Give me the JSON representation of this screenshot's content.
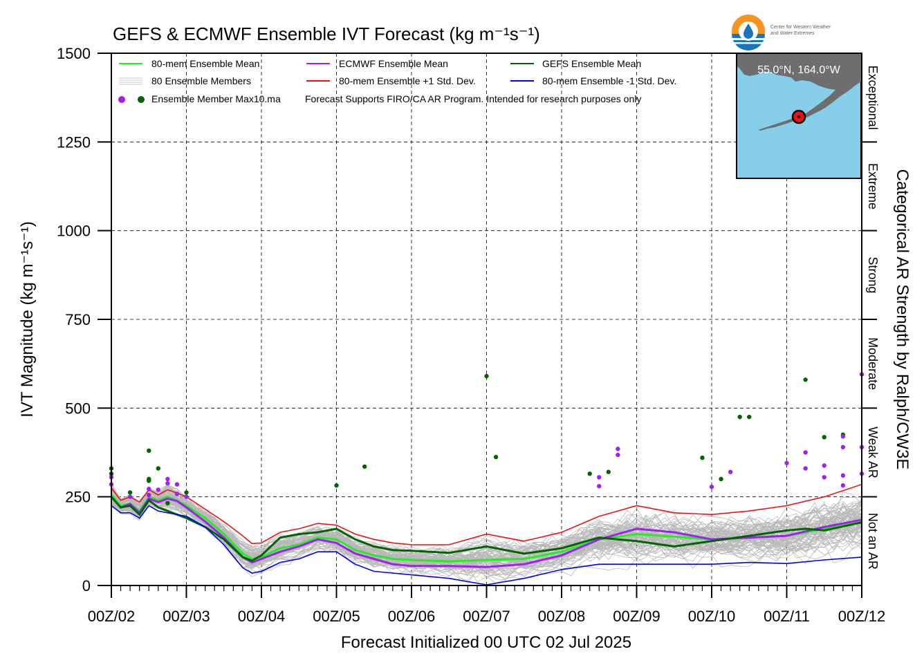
{
  "title": "GEFS & ECMWF Ensemble IVT Forecast (kg m⁻¹s⁻¹)",
  "logo": {
    "line1": "Center for Western Weather",
    "line2": "and Water Extremes",
    "icon": "cw3e-drop-logo-icon"
  },
  "legend": {
    "mean80": "80-mem Ensemble Mean",
    "members": "80 Ensemble Members",
    "max10": "Ensemble Member Max10.ma",
    "ecmwf_mean": "ECMWF Ensemble Mean",
    "plus_sd": "80-mem Ensemble +1 Std. Dev.",
    "gefs_mean": "GEFS Ensemble Mean",
    "minus_sd": "80-mem Ensemble -1 Std. Dev.",
    "disclaimer": "Forecast Supports FIRO/CA AR Program. Intended for research purposes only"
  },
  "inset_map": {
    "coord_text": "55.0°N, 164.0°W",
    "land_color": "#6e6e6e",
    "ocean_color": "#87ceeb"
  },
  "chart_data": {
    "type": "line",
    "title": "GEFS & ECMWF Ensemble IVT Forecast (kg m⁻¹s⁻¹)",
    "xlabel": "Forecast Initialized 00 UTC 02 Jul 2025",
    "ylabel": "IVT Magnitude (kg m⁻¹s⁻¹)",
    "right_label": "Categorical AR Strength by Ralph/CW3E",
    "x_unit": "forecast day",
    "xlim": [
      0,
      10
    ],
    "ylim": [
      0,
      1500
    ],
    "x_ticks": [
      {
        "x": 0,
        "label": "00Z/02"
      },
      {
        "x": 1,
        "label": "00Z/03"
      },
      {
        "x": 2,
        "label": "00Z/04"
      },
      {
        "x": 3,
        "label": "00Z/05"
      },
      {
        "x": 4,
        "label": "00Z/06"
      },
      {
        "x": 5,
        "label": "00Z/07"
      },
      {
        "x": 6,
        "label": "00Z/08"
      },
      {
        "x": 7,
        "label": "00Z/09"
      },
      {
        "x": 8,
        "label": "00Z/10"
      },
      {
        "x": 9,
        "label": "00Z/11"
      },
      {
        "x": 10,
        "label": "00Z/12"
      }
    ],
    "y_ticks": [
      0,
      250,
      500,
      750,
      1000,
      1250,
      1500
    ],
    "grid": true,
    "legend_position": "top-left",
    "categories_right": [
      {
        "label": "Not an AR",
        "from": 0,
        "to": 250
      },
      {
        "label": "Weak AR",
        "from": 250,
        "to": 500
      },
      {
        "label": "Moderate",
        "from": 500,
        "to": 750
      },
      {
        "label": "Strong",
        "from": 750,
        "to": 1000
      },
      {
        "label": "Extreme",
        "from": 1000,
        "to": 1250
      },
      {
        "label": "Exceptional",
        "from": 1250,
        "to": 1500
      }
    ],
    "series": [
      {
        "name": "80-mem Ensemble Mean",
        "color": "#22ee22",
        "points": [
          [
            0,
            255
          ],
          [
            0.125,
            225
          ],
          [
            0.25,
            230
          ],
          [
            0.375,
            210
          ],
          [
            0.5,
            250
          ],
          [
            0.625,
            240
          ],
          [
            0.75,
            250
          ],
          [
            0.875,
            240
          ],
          [
            1,
            225
          ],
          [
            1.25,
            190
          ],
          [
            1.5,
            145
          ],
          [
            1.75,
            90
          ],
          [
            1.875,
            75
          ],
          [
            2,
            80
          ],
          [
            2.25,
            105
          ],
          [
            2.5,
            115
          ],
          [
            2.75,
            135
          ],
          [
            3,
            130
          ],
          [
            3.25,
            100
          ],
          [
            3.5,
            85
          ],
          [
            3.75,
            75
          ],
          [
            4,
            72
          ],
          [
            4.5,
            68
          ],
          [
            5,
            72
          ],
          [
            5.5,
            75
          ],
          [
            6,
            95
          ],
          [
            6.5,
            130
          ],
          [
            7,
            145
          ],
          [
            7.5,
            138
          ],
          [
            8,
            130
          ],
          [
            8.5,
            135
          ],
          [
            9,
            140
          ],
          [
            9.5,
            160
          ],
          [
            10,
            185
          ]
        ]
      },
      {
        "name": "ECMWF Ensemble Mean",
        "color": "#a020f0",
        "points": [
          [
            0,
            250
          ],
          [
            0.125,
            220
          ],
          [
            0.25,
            230
          ],
          [
            0.375,
            205
          ],
          [
            0.5,
            245
          ],
          [
            0.625,
            235
          ],
          [
            0.75,
            245
          ],
          [
            0.875,
            238
          ],
          [
            1,
            220
          ],
          [
            1.25,
            180
          ],
          [
            1.5,
            135
          ],
          [
            1.75,
            80
          ],
          [
            1.875,
            65
          ],
          [
            2,
            75
          ],
          [
            2.25,
            95
          ],
          [
            2.5,
            110
          ],
          [
            2.75,
            130
          ],
          [
            3,
            120
          ],
          [
            3.25,
            90
          ],
          [
            3.5,
            75
          ],
          [
            3.75,
            60
          ],
          [
            4,
            55
          ],
          [
            4.5,
            55
          ],
          [
            5,
            52
          ],
          [
            5.5,
            60
          ],
          [
            6,
            85
          ],
          [
            6.5,
            130
          ],
          [
            7,
            160
          ],
          [
            7.5,
            150
          ],
          [
            8,
            130
          ],
          [
            8.5,
            135
          ],
          [
            9,
            140
          ],
          [
            9.5,
            165
          ],
          [
            10,
            185
          ]
        ]
      },
      {
        "name": "GEFS Ensemble Mean",
        "color": "#006400",
        "points": [
          [
            0,
            250
          ],
          [
            0.125,
            220
          ],
          [
            0.25,
            225
          ],
          [
            0.375,
            200
          ],
          [
            0.5,
            240
          ],
          [
            0.625,
            220
          ],
          [
            0.75,
            210
          ],
          [
            0.875,
            200
          ],
          [
            1,
            190
          ],
          [
            1.25,
            165
          ],
          [
            1.5,
            130
          ],
          [
            1.75,
            80
          ],
          [
            1.875,
            70
          ],
          [
            2,
            85
          ],
          [
            2.25,
            135
          ],
          [
            2.5,
            145
          ],
          [
            2.75,
            150
          ],
          [
            3,
            160
          ],
          [
            3.25,
            130
          ],
          [
            3.5,
            110
          ],
          [
            3.75,
            100
          ],
          [
            4,
            98
          ],
          [
            4.5,
            92
          ],
          [
            5,
            110
          ],
          [
            5.5,
            90
          ],
          [
            6,
            105
          ],
          [
            6.5,
            135
          ],
          [
            7,
            125
          ],
          [
            7.5,
            110
          ],
          [
            8,
            125
          ],
          [
            8.5,
            140
          ],
          [
            9,
            155
          ],
          [
            9.25,
            160
          ],
          [
            9.5,
            155
          ],
          [
            10,
            178
          ]
        ]
      },
      {
        "name": "80-mem Ensemble +1 Std. Dev.",
        "color": "#ee1111",
        "points": [
          [
            0,
            275
          ],
          [
            0.125,
            240
          ],
          [
            0.25,
            250
          ],
          [
            0.375,
            235
          ],
          [
            0.5,
            270
          ],
          [
            0.625,
            255
          ],
          [
            0.75,
            270
          ],
          [
            0.875,
            260
          ],
          [
            1,
            250
          ],
          [
            1.25,
            215
          ],
          [
            1.5,
            180
          ],
          [
            1.75,
            140
          ],
          [
            1.875,
            118
          ],
          [
            2,
            120
          ],
          [
            2.25,
            150
          ],
          [
            2.5,
            160
          ],
          [
            2.75,
            175
          ],
          [
            3,
            170
          ],
          [
            3.25,
            145
          ],
          [
            3.5,
            130
          ],
          [
            3.75,
            120
          ],
          [
            4,
            115
          ],
          [
            4.5,
            115
          ],
          [
            5,
            145
          ],
          [
            5.5,
            125
          ],
          [
            6,
            150
          ],
          [
            6.5,
            195
          ],
          [
            7,
            225
          ],
          [
            7.5,
            205
          ],
          [
            8,
            200
          ],
          [
            8.5,
            210
          ],
          [
            9,
            225
          ],
          [
            9.5,
            250
          ],
          [
            10,
            285
          ]
        ]
      },
      {
        "name": "80-mem Ensemble -1 Std. Dev.",
        "color": "#0000ee",
        "points": [
          [
            0,
            225
          ],
          [
            0.125,
            205
          ],
          [
            0.25,
            205
          ],
          [
            0.375,
            190
          ],
          [
            0.5,
            225
          ],
          [
            0.625,
            210
          ],
          [
            0.75,
            205
          ],
          [
            0.875,
            200
          ],
          [
            1,
            195
          ],
          [
            1.25,
            165
          ],
          [
            1.5,
            115
          ],
          [
            1.75,
            50
          ],
          [
            1.875,
            35
          ],
          [
            2,
            40
          ],
          [
            2.25,
            65
          ],
          [
            2.5,
            75
          ],
          [
            2.75,
            95
          ],
          [
            3,
            95
          ],
          [
            3.25,
            60
          ],
          [
            3.5,
            40
          ],
          [
            3.75,
            35
          ],
          [
            4,
            30
          ],
          [
            4.5,
            20
          ],
          [
            5,
            2
          ],
          [
            5.5,
            20
          ],
          [
            6,
            45
          ],
          [
            6.5,
            60
          ],
          [
            7,
            60
          ],
          [
            7.5,
            60
          ],
          [
            8,
            60
          ],
          [
            8.5,
            65
          ],
          [
            9,
            62
          ],
          [
            9.5,
            72
          ],
          [
            10,
            80
          ]
        ]
      }
    ],
    "member_max_points": [
      {
        "model": "GEFS",
        "color": "#006400",
        "points": [
          [
            0,
            330
          ],
          [
            0,
            315
          ],
          [
            0.25,
            262
          ],
          [
            0.5,
            380
          ],
          [
            0.5,
            300
          ],
          [
            0.5,
            295
          ],
          [
            0.625,
            330
          ],
          [
            0.75,
            232
          ],
          [
            1,
            262
          ],
          [
            3,
            282
          ],
          [
            3.375,
            335
          ],
          [
            5,
            590
          ],
          [
            5.125,
            362
          ],
          [
            6.375,
            315
          ],
          [
            6.625,
            320
          ],
          [
            7.875,
            360
          ],
          [
            8.125,
            300
          ],
          [
            8.375,
            475
          ],
          [
            8.5,
            475
          ],
          [
            9.25,
            580
          ],
          [
            9.5,
            418
          ],
          [
            9.75,
            425
          ]
        ]
      },
      {
        "model": "ECMWF",
        "color": "#a020f0",
        "points": [
          [
            0,
            305
          ],
          [
            0,
            285
          ],
          [
            0.25,
            250
          ],
          [
            0.5,
            272
          ],
          [
            0.5,
            255
          ],
          [
            0.625,
            270
          ],
          [
            0.75,
            300
          ],
          [
            0.75,
            288
          ],
          [
            0.875,
            285
          ],
          [
            0.875,
            258
          ],
          [
            1,
            250
          ],
          [
            6.5,
            305
          ],
          [
            6.5,
            280
          ],
          [
            6.75,
            385
          ],
          [
            6.75,
            368
          ],
          [
            8,
            278
          ],
          [
            8.25,
            320
          ],
          [
            9,
            345
          ],
          [
            9.25,
            375
          ],
          [
            9.25,
            330
          ],
          [
            9.5,
            338
          ],
          [
            9.5,
            305
          ],
          [
            9.75,
            420
          ],
          [
            9.75,
            390
          ],
          [
            9.75,
            310
          ],
          [
            9.75,
            282
          ],
          [
            10,
            595
          ],
          [
            10,
            390
          ],
          [
            10,
            315
          ]
        ]
      }
    ]
  }
}
